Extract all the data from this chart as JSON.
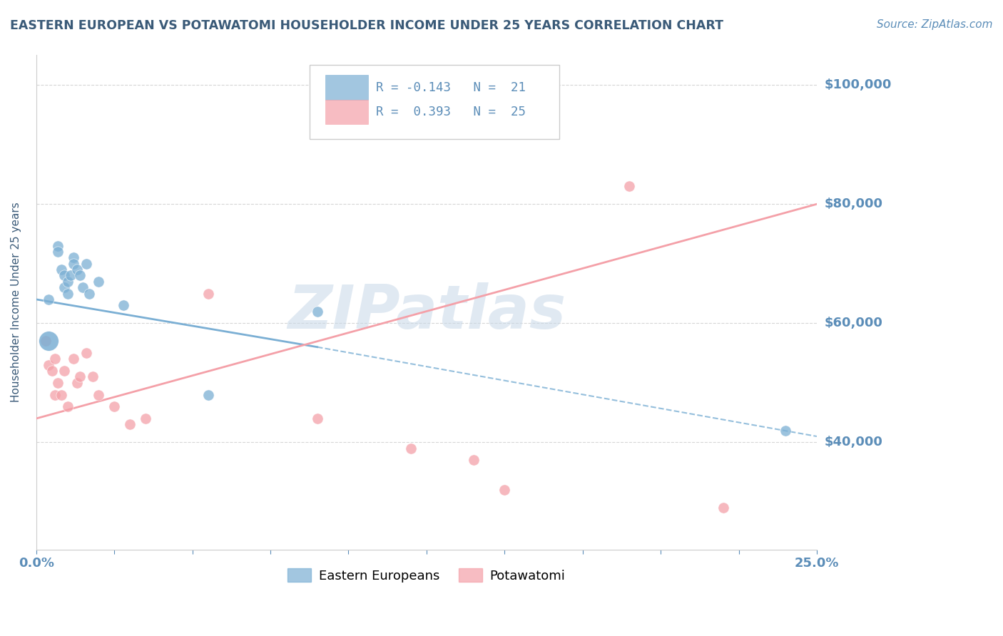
{
  "title": "EASTERN EUROPEAN VS POTAWATOMI HOUSEHOLDER INCOME UNDER 25 YEARS CORRELATION CHART",
  "source_text": "Source: ZipAtlas.com",
  "ylabel": "Householder Income Under 25 years",
  "xlim": [
    0.0,
    0.25
  ],
  "ylim": [
    22000,
    105000
  ],
  "yticks": [
    40000,
    60000,
    80000,
    100000
  ],
  "ytick_labels": [
    "$40,000",
    "$60,000",
    "$80,000",
    "$100,000"
  ],
  "xticks": [
    0.0,
    0.025,
    0.05,
    0.075,
    0.1,
    0.125,
    0.15,
    0.175,
    0.2,
    0.225,
    0.25
  ],
  "xtick_labels_show": [
    "0.0%",
    "",
    "",
    "",
    "",
    "",
    "",
    "",
    "",
    "",
    "25.0%"
  ],
  "legend_line1": "R = -0.143   N =  21",
  "legend_line2": "R =  0.393   N =  25",
  "watermark": "ZIPatlas",
  "blue_color": "#7BAFD4",
  "pink_color": "#F4A0A8",
  "axis_label_color": "#5B8DB8",
  "title_color": "#3A5A78",
  "blue_scatter": [
    [
      0.004,
      64000
    ],
    [
      0.007,
      73000
    ],
    [
      0.007,
      72000
    ],
    [
      0.008,
      69000
    ],
    [
      0.009,
      68000
    ],
    [
      0.009,
      66000
    ],
    [
      0.01,
      67000
    ],
    [
      0.01,
      65000
    ],
    [
      0.011,
      68000
    ],
    [
      0.012,
      71000
    ],
    [
      0.012,
      70000
    ],
    [
      0.013,
      69000
    ],
    [
      0.014,
      68000
    ],
    [
      0.015,
      66000
    ],
    [
      0.016,
      70000
    ],
    [
      0.017,
      65000
    ],
    [
      0.02,
      67000
    ],
    [
      0.028,
      63000
    ],
    [
      0.055,
      48000
    ],
    [
      0.09,
      62000
    ],
    [
      0.24,
      42000
    ]
  ],
  "pink_scatter": [
    [
      0.003,
      57000
    ],
    [
      0.004,
      53000
    ],
    [
      0.005,
      52000
    ],
    [
      0.006,
      48000
    ],
    [
      0.006,
      54000
    ],
    [
      0.007,
      50000
    ],
    [
      0.008,
      48000
    ],
    [
      0.009,
      52000
    ],
    [
      0.01,
      46000
    ],
    [
      0.012,
      54000
    ],
    [
      0.013,
      50000
    ],
    [
      0.014,
      51000
    ],
    [
      0.016,
      55000
    ],
    [
      0.018,
      51000
    ],
    [
      0.02,
      48000
    ],
    [
      0.025,
      46000
    ],
    [
      0.03,
      43000
    ],
    [
      0.035,
      44000
    ],
    [
      0.055,
      65000
    ],
    [
      0.09,
      44000
    ],
    [
      0.12,
      39000
    ],
    [
      0.14,
      37000
    ],
    [
      0.15,
      32000
    ],
    [
      0.19,
      83000
    ],
    [
      0.22,
      29000
    ]
  ],
  "blue_line_solid": [
    [
      0.0,
      64000
    ],
    [
      0.09,
      56000
    ]
  ],
  "blue_line_dashed": [
    [
      0.09,
      56000
    ],
    [
      0.25,
      41000
    ]
  ],
  "pink_line": [
    [
      0.0,
      44000
    ],
    [
      0.25,
      80000
    ]
  ],
  "grid_color": "#CCCCCC",
  "background_color": "#FFFFFF"
}
